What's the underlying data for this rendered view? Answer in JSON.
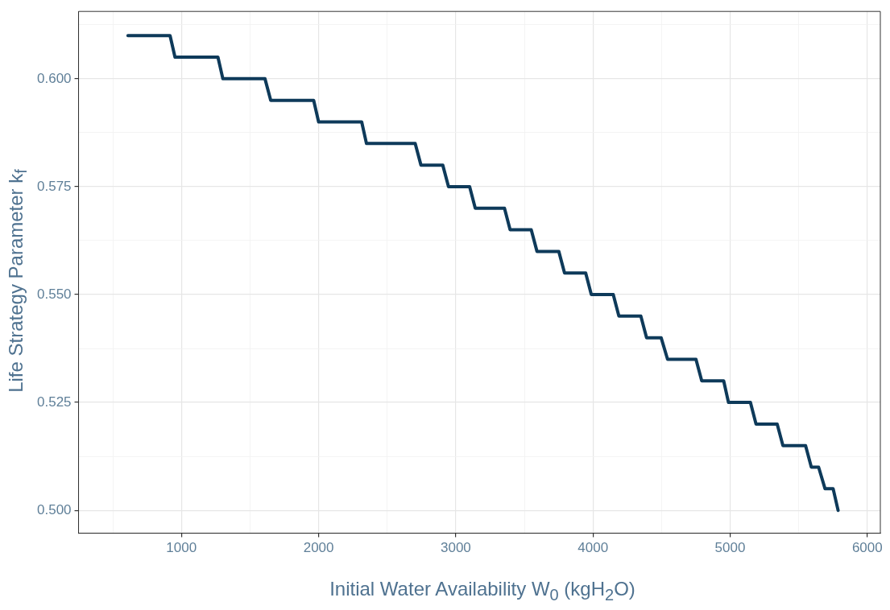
{
  "chart_data": {
    "type": "line",
    "xlabel": "Initial Water Availability W$_{0}$ (kgH$_{2}$O)",
    "ylabel": "Life Strategy Parameter k$_{f}$",
    "x": [
      610,
      917,
      953,
      1266,
      1302,
      1609,
      1651,
      1964,
      2000,
      2314,
      2349,
      2704,
      2746,
      2905,
      2947,
      3101,
      3142,
      3355,
      3396,
      3550,
      3592,
      3751,
      3793,
      3947,
      3988,
      4148,
      4189,
      4349,
      4391,
      4497,
      4544,
      4751,
      4793,
      4953,
      4988,
      5148,
      5189,
      5343,
      5385,
      5550,
      5592,
      5645,
      5692,
      5751,
      5787
    ],
    "series": [
      {
        "color": "#0e3a5a",
        "values": [
          0.61,
          0.61,
          0.605,
          0.605,
          0.6,
          0.6,
          0.595,
          0.595,
          0.59,
          0.59,
          0.585,
          0.585,
          0.58,
          0.58,
          0.575,
          0.575,
          0.57,
          0.57,
          0.565,
          0.565,
          0.56,
          0.56,
          0.555,
          0.555,
          0.55,
          0.55,
          0.545,
          0.545,
          0.54,
          0.54,
          0.535,
          0.535,
          0.53,
          0.53,
          0.525,
          0.525,
          0.52,
          0.52,
          0.515,
          0.515,
          0.51,
          0.51,
          0.505,
          0.505,
          0.5
        ]
      }
    ],
    "xlim": [
      250,
      6095
    ],
    "ylim": [
      0.4947,
      0.6156
    ],
    "xticks": [
      {
        "value": 500,
        "label": null
      },
      1000,
      {
        "value": 1500,
        "label": null
      },
      2000,
      {
        "value": 2500,
        "label": null
      },
      3000,
      {
        "value": 3500,
        "label": null
      },
      4000,
      {
        "value": 4500,
        "label": null
      },
      5000,
      {
        "value": 5500,
        "label": null
      },
      6000
    ],
    "yticks": [
      {
        "value": 0.5,
        "label": "0.500"
      },
      {
        "value": 0.5125,
        "label": null
      },
      0.525,
      {
        "value": 0.5375,
        "label": null
      },
      {
        "value": 0.55,
        "label": "0.550"
      },
      {
        "value": 0.5625,
        "label": null
      },
      0.575,
      {
        "value": 0.5875,
        "label": null
      },
      {
        "value": 0.6,
        "label": "0.600"
      },
      {
        "value": 0.6125,
        "label": null
      }
    ],
    "grid": true,
    "legend": false,
    "marker": "none",
    "line_style": "solid"
  }
}
